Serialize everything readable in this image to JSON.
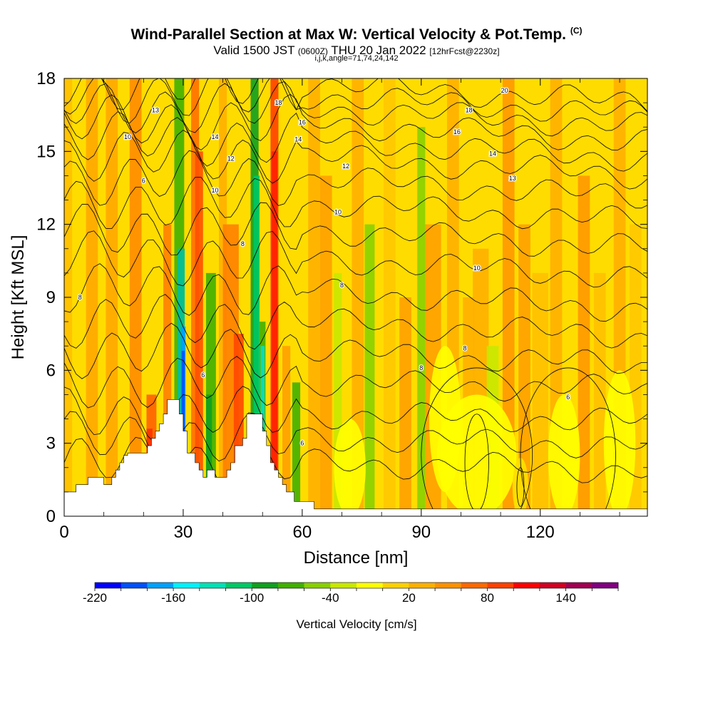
{
  "header": {
    "title": "Wind-Parallel Section at Max W: Vertical Velocity & Pot.Temp.",
    "copyright": "(C)",
    "valid_prefix": "Valid 1500 JST",
    "valid_utc": "(0600Z)",
    "valid_date": "THU 20 Jan 2022",
    "forecast": "[12hrFcst@2230z]",
    "indices": "i,j,k,angle=71,74,24,142"
  },
  "chart_data": {
    "type": "heatmap",
    "xlabel": "Distance [nm]",
    "ylabel": "Height [Kft MSL]",
    "xlim": [
      0,
      147
    ],
    "ylim": [
      0,
      18
    ],
    "x_ticks": [
      "0",
      "30",
      "60",
      "90",
      "120"
    ],
    "y_ticks": [
      "0",
      "3",
      "6",
      "9",
      "12",
      "15",
      "18"
    ],
    "colorbar": {
      "label": "Vertical Velocity [cm/s]",
      "tick_labels": [
        "-220",
        "-160",
        "-100",
        "-40",
        "20",
        "80",
        "140"
      ],
      "colors": [
        "#0000ff",
        "#0050ff",
        "#00a0ff",
        "#00f0ff",
        "#00e0b4",
        "#00c864",
        "#10a020",
        "#40b000",
        "#88d000",
        "#c8e800",
        "#ffff00",
        "#ffd000",
        "#ffb000",
        "#ff9000",
        "#ff6800",
        "#ff4000",
        "#ff0000",
        "#d00020",
        "#a00050",
        "#800080"
      ]
    },
    "terrain_kft": [
      [
        0,
        1.0
      ],
      [
        3,
        1.0
      ],
      [
        3,
        1.3
      ],
      [
        6,
        1.3
      ],
      [
        6,
        1.6
      ],
      [
        10,
        1.6
      ],
      [
        10,
        1.3
      ],
      [
        12,
        1.3
      ],
      [
        12,
        1.6
      ],
      [
        13,
        1.6
      ],
      [
        13,
        1.9
      ],
      [
        14,
        1.9
      ],
      [
        14,
        2.2
      ],
      [
        15,
        2.2
      ],
      [
        15,
        2.5
      ],
      [
        16,
        2.5
      ],
      [
        16,
        2.6
      ],
      [
        21,
        2.6
      ],
      [
        21,
        2.9
      ],
      [
        22,
        2.9
      ],
      [
        22,
        3.2
      ],
      [
        23,
        3.2
      ],
      [
        23,
        3.5
      ],
      [
        24,
        3.5
      ],
      [
        24,
        3.8
      ],
      [
        25,
        3.8
      ],
      [
        25,
        4.2
      ],
      [
        26,
        4.2
      ],
      [
        26,
        4.8
      ],
      [
        29,
        4.8
      ],
      [
        29,
        4.2
      ],
      [
        30,
        4.2
      ],
      [
        30,
        3.5
      ],
      [
        31,
        3.5
      ],
      [
        31,
        2.6
      ],
      [
        33,
        2.6
      ],
      [
        33,
        2.2
      ],
      [
        34,
        2.2
      ],
      [
        34,
        1.9
      ],
      [
        35,
        1.9
      ],
      [
        35,
        1.6
      ],
      [
        36,
        1.6
      ],
      [
        36,
        1.9
      ],
      [
        38,
        1.9
      ],
      [
        38,
        1.6
      ],
      [
        41,
        1.6
      ],
      [
        41,
        1.9
      ],
      [
        42,
        1.9
      ],
      [
        42,
        2.2
      ],
      [
        43,
        2.2
      ],
      [
        43,
        2.9
      ],
      [
        45,
        2.9
      ],
      [
        45,
        3.2
      ],
      [
        46,
        3.2
      ],
      [
        46,
        4.2
      ],
      [
        50,
        4.2
      ],
      [
        50,
        3.5
      ],
      [
        51,
        3.5
      ],
      [
        51,
        2.9
      ],
      [
        52,
        2.9
      ],
      [
        52,
        2.2
      ],
      [
        53,
        2.2
      ],
      [
        53,
        1.9
      ],
      [
        54,
        1.9
      ],
      [
        54,
        1.6
      ],
      [
        55,
        1.6
      ],
      [
        55,
        1.3
      ],
      [
        56,
        1.3
      ],
      [
        56,
        1.0
      ],
      [
        58,
        1.0
      ],
      [
        58,
        0.6
      ],
      [
        63,
        0.6
      ],
      [
        63,
        0.3
      ],
      [
        147,
        0.3
      ]
    ],
    "theta_labels": [
      {
        "text": "8",
        "x": 4,
        "y": 9.0
      },
      {
        "text": "6",
        "x": 20,
        "y": 13.8
      },
      {
        "text": "10",
        "x": 16,
        "y": 15.6
      },
      {
        "text": "13",
        "x": 23,
        "y": 16.7
      },
      {
        "text": "14",
        "x": 38,
        "y": 15.6
      },
      {
        "text": "12",
        "x": 42,
        "y": 14.7
      },
      {
        "text": "10",
        "x": 38,
        "y": 13.4
      },
      {
        "text": "8",
        "x": 45,
        "y": 11.2
      },
      {
        "text": "6",
        "x": 35,
        "y": 5.8
      },
      {
        "text": "18",
        "x": 54,
        "y": 17.0
      },
      {
        "text": "16",
        "x": 60,
        "y": 16.2
      },
      {
        "text": "14",
        "x": 59,
        "y": 15.5
      },
      {
        "text": "12",
        "x": 71,
        "y": 14.4
      },
      {
        "text": "10",
        "x": 69,
        "y": 12.5
      },
      {
        "text": "8",
        "x": 70,
        "y": 9.5
      },
      {
        "text": "6",
        "x": 60,
        "y": 3.0
      },
      {
        "text": "20",
        "x": 111,
        "y": 17.5
      },
      {
        "text": "18",
        "x": 102,
        "y": 16.7
      },
      {
        "text": "16",
        "x": 99,
        "y": 15.8
      },
      {
        "text": "14",
        "x": 108,
        "y": 14.9
      },
      {
        "text": "13",
        "x": 113,
        "y": 13.9
      },
      {
        "text": "10",
        "x": 104,
        "y": 10.2
      },
      {
        "text": "8",
        "x": 101,
        "y": 6.9
      },
      {
        "text": "8",
        "x": 90,
        "y": 6.1
      },
      {
        "text": "6",
        "x": 127,
        "y": 4.9
      }
    ]
  }
}
